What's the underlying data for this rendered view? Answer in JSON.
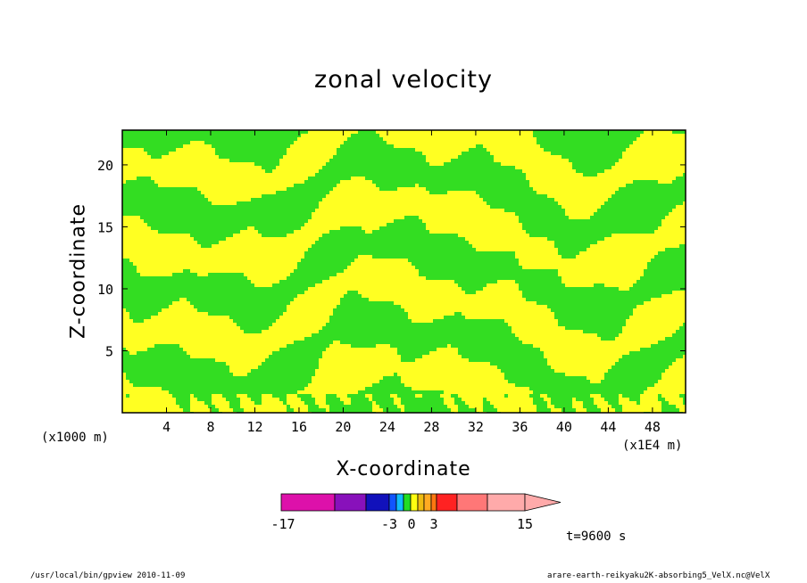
{
  "chart_data": {
    "type": "heatmap",
    "title": "zonal velocity",
    "xlabel": "X-coordinate",
    "ylabel": "Z-coordinate",
    "x_unit": "(x1E4 m)",
    "y_unit": "(x1000 m)",
    "xlim": [
      0,
      51
    ],
    "ylim": [
      0,
      22.8
    ],
    "x_ticks": [
      4,
      8,
      12,
      16,
      20,
      24,
      28,
      32,
      36,
      40,
      44,
      48
    ],
    "y_ticks": [
      5,
      10,
      15,
      20
    ],
    "field_colors": [
      "#33dd22",
      "#ffff22"
    ],
    "colorbar": {
      "min_label": "-17",
      "max_label": "15",
      "tick_labels": [
        "-17",
        "-3",
        "0",
        "3",
        "15"
      ],
      "colors": [
        "#dd11aa",
        "#8811bb",
        "#1111bb",
        "#1155ff",
        "#11bbff",
        "#22dd22",
        "#ffff11",
        "#eebb11",
        "#ffaa22",
        "#ff7711",
        "#ff2222",
        "#ff7777",
        "#ffaaaa"
      ]
    },
    "annotation": "t=9600 s"
  },
  "footer": {
    "left": "/usr/local/bin/gpview  2010-11-09",
    "right": "arare-earth-reikyaku2K-absorbing5_VelX.nc@VelX"
  }
}
